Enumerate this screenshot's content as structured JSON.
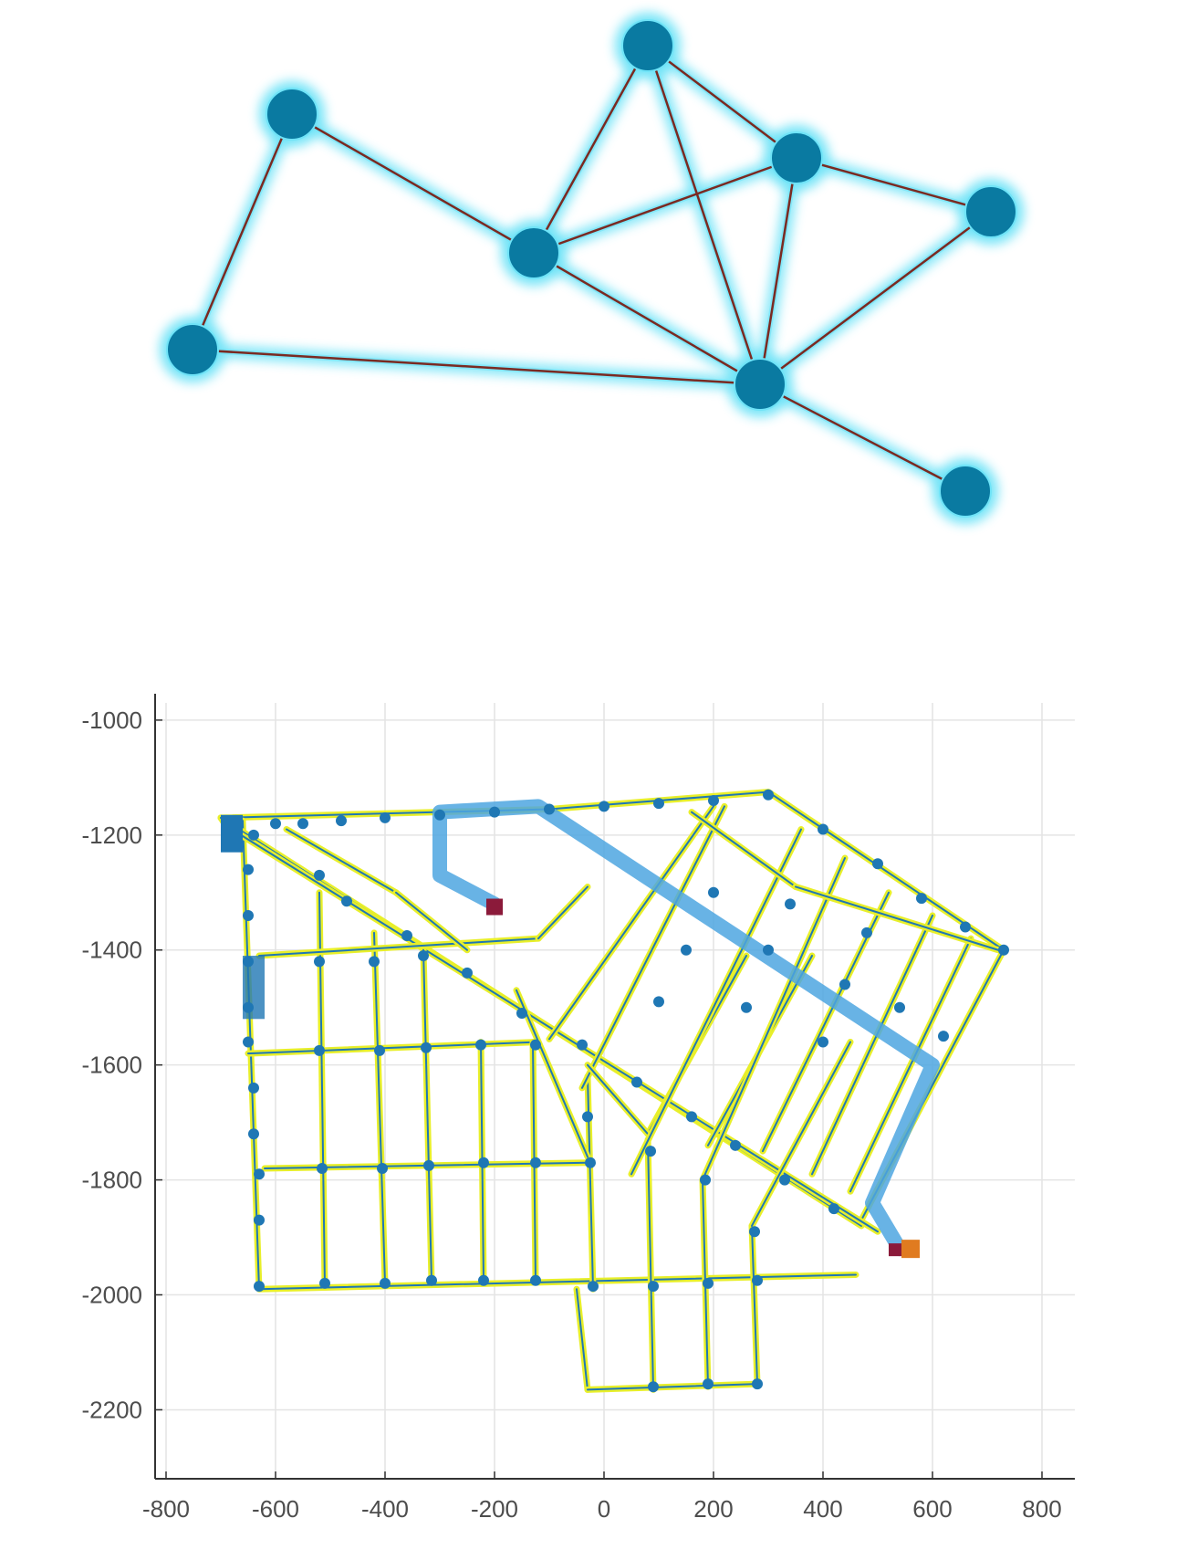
{
  "graph": {
    "colors": {
      "node": "#0a7aa1",
      "glow": "#6fe3f7",
      "edge": "#7a2a22"
    },
    "nodes": [
      {
        "id": "n1"
      },
      {
        "id": "n2"
      },
      {
        "id": "n3"
      },
      {
        "id": "n4"
      },
      {
        "id": "n5"
      },
      {
        "id": "n6"
      },
      {
        "id": "n7"
      },
      {
        "id": "n8"
      },
      {
        "id": "n9"
      }
    ],
    "edges": [
      [
        "n1",
        "n2"
      ],
      [
        "n1",
        "n3"
      ],
      [
        "n2",
        "n4"
      ],
      [
        "n3",
        "n5"
      ],
      [
        "n2",
        "n5"
      ],
      [
        "n2",
        "n6"
      ],
      [
        "n2",
        "n7"
      ],
      [
        "n4",
        "n6"
      ],
      [
        "n4",
        "n7"
      ],
      [
        "n6",
        "n7"
      ],
      [
        "n6",
        "n8"
      ],
      [
        "n7",
        "n8"
      ],
      [
        "n7",
        "n9"
      ]
    ]
  },
  "chart_data": {
    "type": "scatter",
    "title": "",
    "xlabel": "",
    "ylabel": "",
    "xlim": [
      -820,
      860
    ],
    "ylim": [
      -2320,
      -970
    ],
    "x_ticks": [
      -800,
      -600,
      -400,
      -200,
      0,
      200,
      400,
      600,
      800
    ],
    "y_ticks": [
      -1000,
      -1200,
      -1400,
      -1600,
      -1800,
      -2000,
      -2200
    ],
    "grid": true,
    "colors": {
      "road": "#e8ef2a",
      "node": "#1f77b4",
      "route": "#4da6e0",
      "start": "#8b1a3a",
      "end": "#e07b20"
    },
    "road_segments": [
      [
        [
          -700,
          -1170
        ],
        [
          -100,
          -1155
        ]
      ],
      [
        [
          -100,
          -1155
        ],
        [
          300,
          -1125
        ]
      ],
      [
        [
          300,
          -1125
        ],
        [
          730,
          -1400
        ]
      ],
      [
        [
          730,
          -1400
        ],
        [
          470,
          -1870
        ]
      ],
      [
        [
          -700,
          -1170
        ],
        [
          -680,
          -1200
        ]
      ],
      [
        [
          -660,
          -1175
        ],
        [
          -630,
          -1990
        ]
      ],
      [
        [
          -650,
          -1580
        ],
        [
          -120,
          -1560
        ]
      ],
      [
        [
          -620,
          -1780
        ],
        [
          -30,
          -1770
        ]
      ],
      [
        [
          -630,
          -1990
        ],
        [
          460,
          -1965
        ]
      ],
      [
        [
          -50,
          -1990
        ],
        [
          -30,
          -2165
        ]
      ],
      [
        [
          -30,
          -2165
        ],
        [
          280,
          -2155
        ]
      ],
      [
        [
          -700,
          -1170
        ],
        [
          470,
          -1880
        ]
      ],
      [
        [
          -680,
          -1190
        ],
        [
          500,
          -1890
        ]
      ],
      [
        [
          -520,
          -1300
        ],
        [
          -510,
          -1985
        ]
      ],
      [
        [
          -420,
          -1370
        ],
        [
          -400,
          -1980
        ]
      ],
      [
        [
          -330,
          -1400
        ],
        [
          -315,
          -1975
        ]
      ],
      [
        [
          -225,
          -1560
        ],
        [
          -220,
          -1975
        ]
      ],
      [
        [
          -130,
          -1560
        ],
        [
          -125,
          -1975
        ]
      ],
      [
        [
          -30,
          -1620
        ],
        [
          -20,
          -1990
        ]
      ],
      [
        [
          80,
          -1730
        ],
        [
          90,
          -2165
        ]
      ],
      [
        [
          180,
          -1800
        ],
        [
          190,
          -2160
        ]
      ],
      [
        [
          270,
          -1880
        ],
        [
          280,
          -2155
        ]
      ],
      [
        [
          -630,
          -1410
        ],
        [
          -120,
          -1380
        ]
      ],
      [
        [
          -120,
          -1380
        ],
        [
          -30,
          -1290
        ]
      ],
      [
        [
          -40,
          -1640
        ],
        [
          220,
          -1150
        ]
      ],
      [
        [
          -100,
          -1555
        ],
        [
          200,
          -1150
        ]
      ],
      [
        [
          80,
          -1720
        ],
        [
          260,
          -1410
        ]
      ],
      [
        [
          190,
          -1740
        ],
        [
          380,
          -1410
        ]
      ],
      [
        [
          270,
          -1880
        ],
        [
          450,
          -1560
        ]
      ],
      [
        [
          -160,
          -1470
        ],
        [
          -30,
          -1760
        ]
      ],
      [
        [
          -30,
          -1600
        ],
        [
          80,
          -1720
        ]
      ],
      [
        [
          360,
          -1190
        ],
        [
          50,
          -1790
        ]
      ],
      [
        [
          440,
          -1240
        ],
        [
          180,
          -1800
        ]
      ],
      [
        [
          520,
          -1300
        ],
        [
          290,
          -1750
        ]
      ],
      [
        [
          600,
          -1340
        ],
        [
          380,
          -1790
        ]
      ],
      [
        [
          670,
          -1380
        ],
        [
          450,
          -1820
        ]
      ],
      [
        [
          160,
          -1160
        ],
        [
          350,
          -1290
        ]
      ],
      [
        [
          350,
          -1290
        ],
        [
          720,
          -1400
        ]
      ],
      [
        [
          -580,
          -1190
        ],
        [
          -380,
          -1300
        ]
      ],
      [
        [
          -380,
          -1300
        ],
        [
          -250,
          -1400
        ]
      ]
    ],
    "nodes": [
      [
        -690,
        -1185
      ],
      [
        -640,
        -1200
      ],
      [
        -600,
        -1180
      ],
      [
        -550,
        -1180
      ],
      [
        -480,
        -1175
      ],
      [
        -400,
        -1170
      ],
      [
        -300,
        -1165
      ],
      [
        -200,
        -1160
      ],
      [
        -100,
        -1155
      ],
      [
        0,
        -1150
      ],
      [
        100,
        -1145
      ],
      [
        200,
        -1140
      ],
      [
        300,
        -1130
      ],
      [
        400,
        -1190
      ],
      [
        500,
        -1250
      ],
      [
        580,
        -1310
      ],
      [
        660,
        -1360
      ],
      [
        730,
        -1400
      ],
      [
        -650,
        -1260
      ],
      [
        -650,
        -1340
      ],
      [
        -650,
        -1420
      ],
      [
        -650,
        -1500
      ],
      [
        -650,
        -1560
      ],
      [
        -640,
        -1640
      ],
      [
        -640,
        -1720
      ],
      [
        -630,
        -1790
      ],
      [
        -630,
        -1870
      ],
      [
        -630,
        -1985
      ],
      [
        -520,
        -1420
      ],
      [
        -520,
        -1575
      ],
      [
        -515,
        -1780
      ],
      [
        -510,
        -1980
      ],
      [
        -420,
        -1420
      ],
      [
        -410,
        -1575
      ],
      [
        -405,
        -1780
      ],
      [
        -400,
        -1980
      ],
      [
        -330,
        -1410
      ],
      [
        -325,
        -1570
      ],
      [
        -320,
        -1775
      ],
      [
        -315,
        -1975
      ],
      [
        -225,
        -1565
      ],
      [
        -220,
        -1770
      ],
      [
        -220,
        -1975
      ],
      [
        -125,
        -1565
      ],
      [
        -125,
        -1770
      ],
      [
        -125,
        -1975
      ],
      [
        -30,
        -1690
      ],
      [
        -25,
        -1770
      ],
      [
        -20,
        -1985
      ],
      [
        85,
        -1750
      ],
      [
        90,
        -1985
      ],
      [
        90,
        -2160
      ],
      [
        185,
        -1800
      ],
      [
        190,
        -1980
      ],
      [
        190,
        -2155
      ],
      [
        275,
        -1890
      ],
      [
        280,
        -1975
      ],
      [
        280,
        -2155
      ],
      [
        -520,
        -1270
      ],
      [
        -470,
        -1315
      ],
      [
        -360,
        -1375
      ],
      [
        -250,
        -1440
      ],
      [
        -150,
        -1510
      ],
      [
        -40,
        -1565
      ],
      [
        60,
        -1630
      ],
      [
        160,
        -1690
      ],
      [
        240,
        -1740
      ],
      [
        330,
        -1800
      ],
      [
        420,
        -1850
      ],
      [
        100,
        -1490
      ],
      [
        150,
        -1400
      ],
      [
        200,
        -1300
      ],
      [
        260,
        -1500
      ],
      [
        300,
        -1400
      ],
      [
        340,
        -1320
      ],
      [
        400,
        -1560
      ],
      [
        440,
        -1460
      ],
      [
        480,
        -1370
      ],
      [
        540,
        -1500
      ],
      [
        620,
        -1550
      ]
    ],
    "route": [
      [
        -300,
        -1160
      ],
      [
        -300,
        -1270
      ],
      [
        -200,
        -1320
      ],
      [
        -300,
        -1270
      ],
      [
        -300,
        -1160
      ],
      [
        -120,
        -1150
      ],
      [
        600,
        -1600
      ],
      [
        490,
        -1840
      ],
      [
        540,
        -1920
      ]
    ],
    "start_point": [
      -200,
      -1325
    ],
    "end_point": [
      560,
      -1920
    ]
  }
}
